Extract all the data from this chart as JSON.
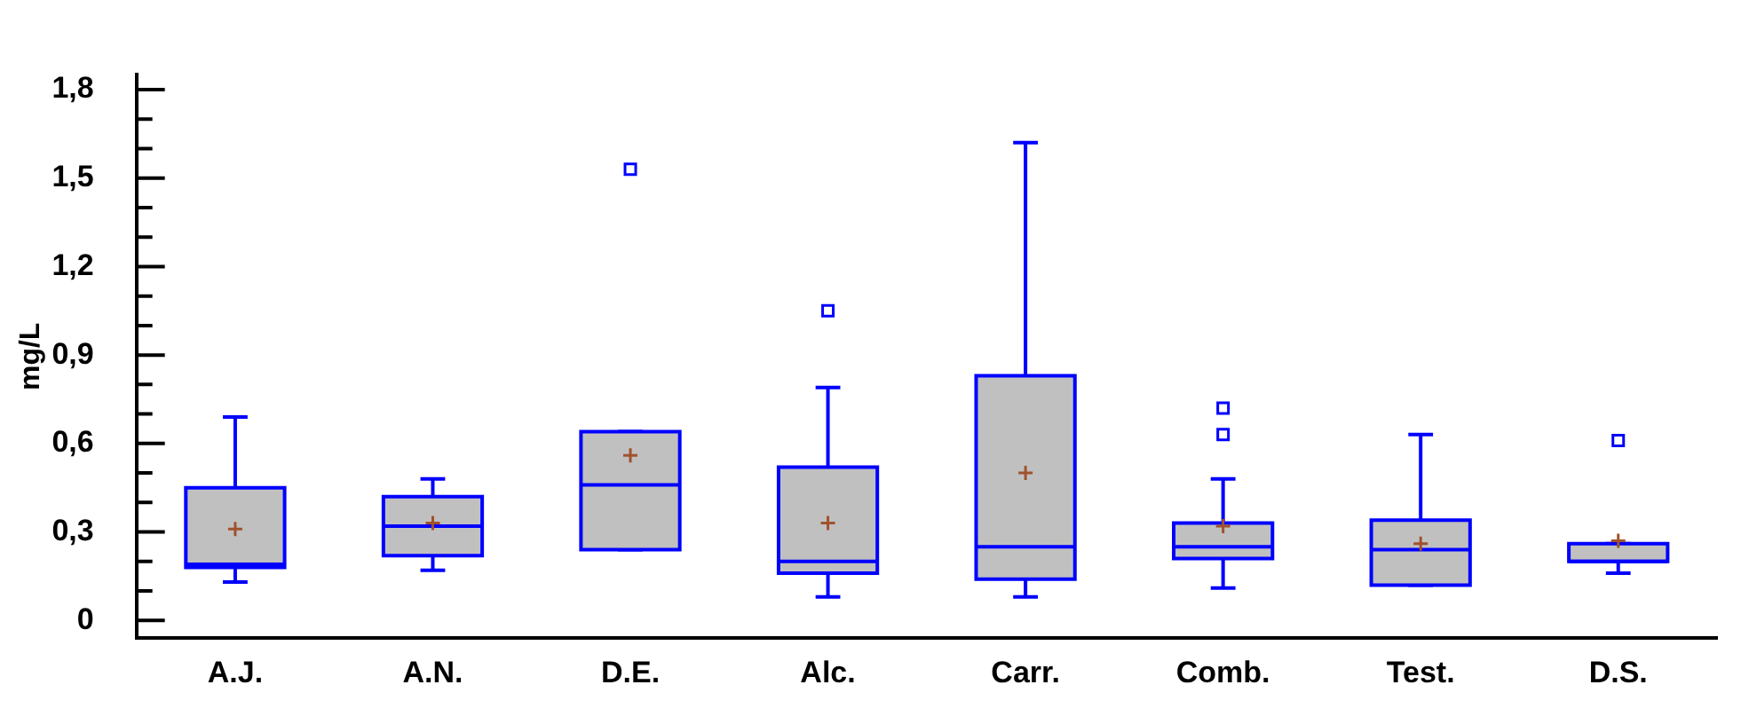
{
  "chart_data": {
    "type": "box",
    "ylabel": "mg/L",
    "color": "#c0c0c0",
    "categories": [
      "A.J.",
      "A.N.",
      "D.E.",
      "Alc.",
      "Carr.",
      "Comb.",
      "Test.",
      "D.S."
    ],
    "boxes": [
      {
        "low": 0.13,
        "q1": 0.18,
        "median": 0.19,
        "q3": 0.45,
        "high": 0.69,
        "mean": 0.31
      },
      {
        "low": 0.17,
        "q1": 0.22,
        "median": 0.32,
        "q3": 0.42,
        "high": 0.48,
        "mean": 0.33
      },
      {
        "low": 0.24,
        "q1": 0.24,
        "median": 0.46,
        "q3": 0.64,
        "high": 0.64,
        "mean": 0.56,
        "outliers": [
          1.53
        ]
      },
      {
        "low": 0.08,
        "q1": 0.16,
        "median": 0.2,
        "q3": 0.52,
        "high": 0.79,
        "mean": 0.33,
        "outliers": [
          1.05
        ]
      },
      {
        "low": 0.08,
        "q1": 0.14,
        "median": 0.25,
        "q3": 0.83,
        "high": 1.62,
        "mean": 0.5
      },
      {
        "low": 0.11,
        "q1": 0.21,
        "median": 0.25,
        "q3": 0.33,
        "high": 0.48,
        "mean": 0.32,
        "outliers": [
          0.63,
          0.72
        ]
      },
      {
        "low": 0.12,
        "q1": 0.12,
        "median": 0.24,
        "q3": 0.34,
        "high": 0.63,
        "mean": 0.26
      },
      {
        "low": 0.16,
        "q1": 0.2,
        "median": 0.2,
        "q3": 0.26,
        "high": 0.26,
        "mean": 0.27,
        "outliers": [
          0.61
        ]
      }
    ],
    "ylim": [
      -0.06,
      1.85
    ],
    "yticks": [
      0,
      {
        "value": 0.1,
        "label": null
      },
      {
        "value": 0.2,
        "label": null
      },
      {
        "value": 0.3,
        "label": "0,3"
      },
      {
        "value": 0.4,
        "label": null
      },
      {
        "value": 0.5,
        "label": null
      },
      {
        "value": 0.6,
        "label": "0,6"
      },
      {
        "value": 0.7,
        "label": null
      },
      {
        "value": 0.8,
        "label": null
      },
      {
        "value": 0.9,
        "label": "0,9"
      },
      {
        "value": 1.0,
        "label": null
      },
      {
        "value": 1.1,
        "label": null
      },
      {
        "value": 1.2,
        "label": "1,2"
      },
      {
        "value": 1.3,
        "label": null
      },
      {
        "value": 1.4,
        "label": null
      },
      {
        "value": 1.5,
        "label": "1,5"
      },
      {
        "value": 1.6,
        "label": null
      },
      {
        "value": 1.7,
        "label": null
      },
      {
        "value": 1.8,
        "label": "1,8"
      }
    ]
  }
}
